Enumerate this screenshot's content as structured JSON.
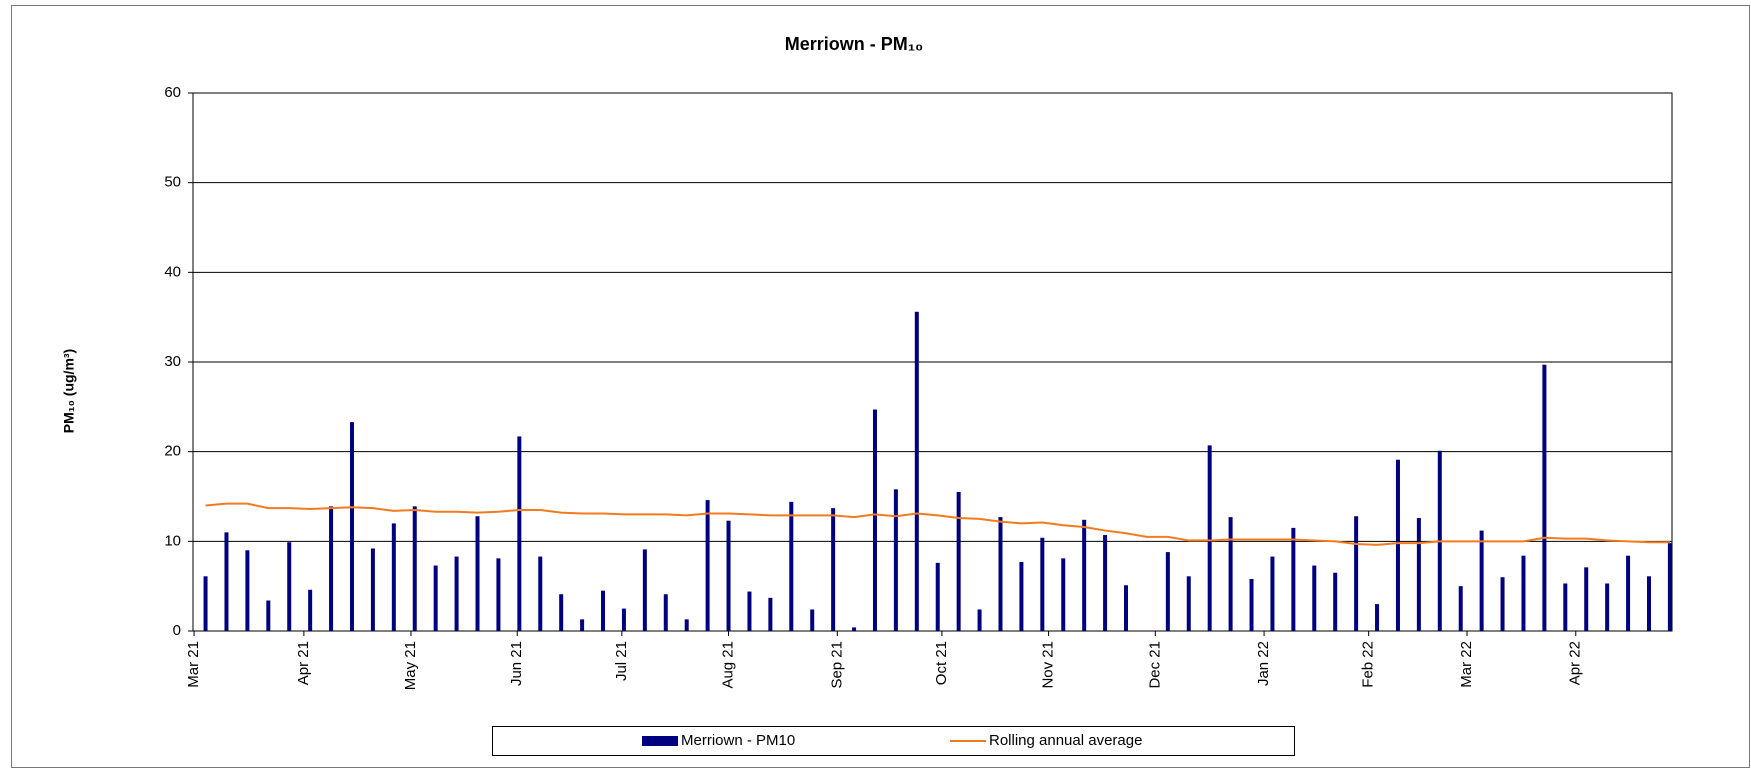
{
  "chart_data": {
    "type": "bar_line",
    "title": "Merriown - PM₁₀",
    "y_label": "PM₁₀ (ug/m³)",
    "categories": [
      null,
      null,
      null,
      null,
      null,
      null,
      null,
      null,
      null,
      null,
      null,
      null,
      null,
      null,
      null,
      null,
      null,
      null,
      null,
      null,
      null,
      null,
      null,
      null,
      null,
      null,
      null,
      null,
      null,
      null,
      null,
      null,
      null,
      null,
      null,
      null,
      null,
      null,
      null,
      null,
      null,
      null,
      null,
      null,
      null,
      null,
      null,
      null,
      null,
      null,
      null,
      null,
      null,
      null,
      null,
      null,
      null,
      null,
      null,
      null,
      null,
      null,
      null,
      null,
      null,
      null,
      null,
      null,
      null,
      null,
      null
    ],
    "series": [
      {
        "name": "Merriown - PM10",
        "type": "bar",
        "color": "#000080",
        "values": [
          6.1,
          11,
          9,
          3.4,
          9.9,
          4.6,
          13.9,
          23.3,
          9.2,
          12,
          13.9,
          7.3,
          8.3,
          12.8,
          8.1,
          21.7,
          8.3,
          4.1,
          1.3,
          4.5,
          2.5,
          9.1,
          4.1,
          1.3,
          14.6,
          12.3,
          4.4,
          3.7,
          14.4,
          2.4,
          13.7,
          0.4,
          24.7,
          15.8,
          35.6,
          7.6,
          15.5,
          2.4,
          12.7,
          7.7,
          10.4,
          8.1,
          12.4,
          10.7,
          5.1,
          null,
          8.8,
          6.1,
          20.7,
          12.7,
          5.8,
          8.3,
          11.5,
          7.3,
          6.5,
          12.8,
          3,
          19.1,
          12.6,
          20.1,
          5,
          11.2,
          6,
          8.4,
          29.7,
          5.3,
          7.1,
          5.3,
          8.4,
          6.1,
          9.8
        ]
      },
      {
        "name": "Rolling annual average",
        "type": "line",
        "color": "#f47a20",
        "values": [
          14.0,
          14.2,
          14.2,
          13.7,
          13.7,
          13.6,
          13.7,
          13.8,
          13.7,
          13.4,
          13.5,
          13.3,
          13.3,
          13.2,
          13.3,
          13.5,
          13.5,
          13.2,
          13.1,
          13.1,
          13.0,
          13.0,
          13.0,
          12.9,
          13.1,
          13.1,
          13.0,
          12.9,
          12.9,
          12.9,
          12.9,
          12.7,
          13.0,
          12.8,
          13.1,
          12.9,
          12.6,
          12.5,
          12.2,
          12.0,
          12.1,
          11.8,
          11.6,
          11.2,
          10.9,
          10.5,
          10.5,
          10.1,
          10.1,
          10.2,
          10.2,
          10.2,
          10.2,
          10.1,
          10.0,
          9.7,
          9.6,
          9.8,
          9.8,
          10.0,
          10.0,
          10.0,
          10.0,
          10.0,
          10.4,
          10.3,
          10.3,
          10.1,
          10.0,
          9.9,
          9.9
        ]
      }
    ],
    "xlim": [
      -0.6,
      70.1
    ],
    "xticks": [
      {
        "value": -0.55,
        "label": "Mar 21"
      },
      {
        "value": 4.7,
        "label": "Apr 21"
      },
      {
        "value": 9.82,
        "label": "May 21"
      },
      {
        "value": 14.9,
        "label": "Jun 21"
      },
      {
        "value": 19.9,
        "label": "Jul 21"
      },
      {
        "value": 25.0,
        "label": "Aug 21"
      },
      {
        "value": 30.2,
        "label": "Sep 21"
      },
      {
        "value": 35.2,
        "label": "Oct 21"
      },
      {
        "value": 40.3,
        "label": "Nov 21"
      },
      {
        "value": 45.4,
        "label": "Dec 21"
      },
      {
        "value": 50.6,
        "label": "Jan 22"
      },
      {
        "value": 55.6,
        "label": "Feb 22"
      },
      {
        "value": 60.3,
        "label": "Mar 22"
      },
      {
        "value": 65.5,
        "label": "Apr 22"
      }
    ],
    "ylim": [
      0,
      60
    ],
    "yticks": [
      0,
      10,
      20,
      30,
      40,
      50,
      60
    ],
    "grid": true,
    "legend": "bottom"
  }
}
